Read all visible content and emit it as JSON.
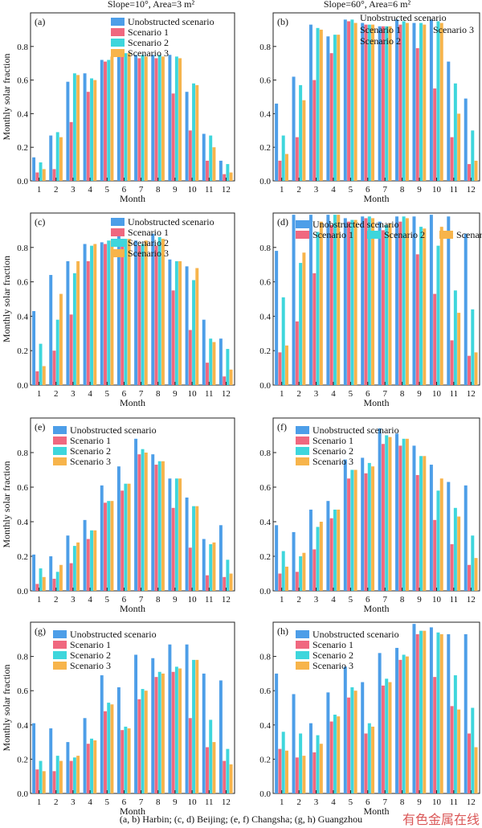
{
  "header": {
    "left_title": "Slope=10°, Area=3 m²",
    "right_title": "Slope=60°, Area=6 m²"
  },
  "caption": "(a, b) Harbin; (c, d) Beijing; (e, f) Changsha; (g, h) Guangzhou",
  "watermark": "有色金属在线",
  "colors": {
    "unobstructed": "#4d9ee8",
    "scenario1": "#f0687f",
    "scenario2": "#3ed6dc",
    "scenario3": "#f7b44b"
  },
  "chart_data": [
    {
      "panel": "(a)",
      "type": "bar",
      "xlabel": "Month",
      "ylabel": "Monthly solar fraction",
      "categories": [
        "1",
        "2",
        "3",
        "4",
        "5",
        "6",
        "7",
        "8",
        "9",
        "10",
        "11",
        "12"
      ],
      "ylim": [
        0,
        1
      ],
      "yticks": [
        "0.0",
        "0.2",
        "0.4",
        "0.6",
        "0.8"
      ],
      "legend": "top-right stacked",
      "series": [
        {
          "name": "Unobstructed scenario",
          "values": [
            0.14,
            0.27,
            0.59,
            0.64,
            0.72,
            0.77,
            0.75,
            0.75,
            0.75,
            0.53,
            0.28,
            0.12
          ]
        },
        {
          "name": "Scenario 1",
          "values": [
            0.05,
            0.07,
            0.35,
            0.53,
            0.71,
            0.74,
            0.73,
            0.73,
            0.52,
            0.3,
            0.12,
            0.04
          ]
        },
        {
          "name": "Scenario 2",
          "values": [
            0.11,
            0.29,
            0.64,
            0.61,
            0.72,
            0.76,
            0.75,
            0.75,
            0.74,
            0.58,
            0.27,
            0.1
          ]
        },
        {
          "name": "Scenario 3",
          "values": [
            0.07,
            0.26,
            0.63,
            0.6,
            0.74,
            0.76,
            0.74,
            0.74,
            0.73,
            0.57,
            0.2,
            0.05
          ]
        }
      ]
    },
    {
      "panel": "(b)",
      "type": "bar",
      "xlabel": "Month",
      "ylabel": "",
      "categories": [
        "1",
        "2",
        "3",
        "4",
        "5",
        "6",
        "7",
        "8",
        "9",
        "10",
        "11",
        "12"
      ],
      "ylim": [
        0,
        1
      ],
      "yticks": [
        "0.0",
        "0.2",
        "0.4",
        "0.6",
        "0.8"
      ],
      "legend": "top scattered labels",
      "series": [
        {
          "name": "Unobstructed scenario",
          "values": [
            0.46,
            0.62,
            0.93,
            0.86,
            0.96,
            0.94,
            0.92,
            0.96,
            0.94,
            0.96,
            0.71,
            0.49
          ]
        },
        {
          "name": "Scenario 1",
          "values": [
            0.12,
            0.26,
            0.6,
            0.76,
            0.95,
            0.93,
            0.92,
            0.93,
            0.79,
            0.55,
            0.26,
            0.1
          ]
        },
        {
          "name": "Scenario 2",
          "values": [
            0.27,
            0.57,
            0.91,
            0.87,
            0.96,
            0.93,
            0.92,
            0.95,
            0.94,
            0.95,
            0.58,
            0.3
          ]
        },
        {
          "name": "Scenario 3",
          "values": [
            0.16,
            0.48,
            0.9,
            0.87,
            0.94,
            0.93,
            0.92,
            0.94,
            0.93,
            0.94,
            0.4,
            0.12
          ]
        }
      ]
    },
    {
      "panel": "(c)",
      "type": "bar",
      "xlabel": "Month",
      "ylabel": "Monthly solar fraction",
      "categories": [
        "1",
        "2",
        "3",
        "4",
        "5",
        "6",
        "7",
        "8",
        "9",
        "10",
        "11",
        "12"
      ],
      "ylim": [
        0,
        1
      ],
      "yticks": [
        "0.0",
        "0.2",
        "0.4",
        "0.6",
        "0.8"
      ],
      "legend": "top-right stacked",
      "series": [
        {
          "name": "Unobstructed scenario",
          "values": [
            0.43,
            0.64,
            0.72,
            0.82,
            0.83,
            0.88,
            0.84,
            0.88,
            0.73,
            0.69,
            0.38,
            0.27
          ]
        },
        {
          "name": "Scenario 1",
          "values": [
            0.08,
            0.2,
            0.41,
            0.72,
            0.82,
            0.84,
            0.81,
            0.81,
            0.55,
            0.32,
            0.13,
            0.05
          ]
        },
        {
          "name": "Scenario 2",
          "values": [
            0.24,
            0.38,
            0.65,
            0.81,
            0.84,
            0.85,
            0.82,
            0.86,
            0.72,
            0.61,
            0.27,
            0.21
          ]
        },
        {
          "name": "Scenario 3",
          "values": [
            0.11,
            0.53,
            0.72,
            0.82,
            0.84,
            0.85,
            0.84,
            0.85,
            0.72,
            0.68,
            0.25,
            0.09
          ]
        }
      ]
    },
    {
      "panel": "(d)",
      "type": "bar",
      "xlabel": "Month",
      "ylabel": "",
      "categories": [
        "1",
        "2",
        "3",
        "4",
        "5",
        "6",
        "7",
        "8",
        "9",
        "10",
        "11",
        "12"
      ],
      "ylim": [
        0,
        1
      ],
      "yticks": [
        "0.0",
        "0.2",
        "0.4",
        "0.6",
        "0.8"
      ],
      "legend": "top row",
      "series": [
        {
          "name": "Unobstructed scenario",
          "values": [
            0.78,
            0.99,
            0.99,
            0.99,
            0.97,
            0.98,
            0.95,
            0.98,
            0.98,
            0.99,
            0.98,
            0.88
          ]
        },
        {
          "name": "Scenario 1",
          "values": [
            0.19,
            0.37,
            0.65,
            0.93,
            0.95,
            0.97,
            0.9,
            0.95,
            0.76,
            0.53,
            0.26,
            0.17
          ]
        },
        {
          "name": "Scenario 2",
          "values": [
            0.51,
            0.71,
            0.89,
            0.99,
            0.96,
            0.98,
            0.93,
            0.98,
            0.92,
            0.81,
            0.55,
            0.44
          ]
        },
        {
          "name": "Scenario 3",
          "values": [
            0.23,
            0.77,
            0.95,
            0.99,
            0.96,
            0.97,
            0.94,
            0.97,
            0.91,
            0.92,
            0.42,
            0.19
          ]
        }
      ]
    },
    {
      "panel": "(e)",
      "type": "bar",
      "xlabel": "Month",
      "ylabel": "Monthly solar fraction",
      "categories": [
        "1",
        "2",
        "3",
        "4",
        "5",
        "6",
        "7",
        "8",
        "9",
        "10",
        "11",
        "12"
      ],
      "ylim": [
        0,
        1
      ],
      "yticks": [
        "0.0",
        "0.2",
        "0.4",
        "0.6",
        "0.8"
      ],
      "legend": "top-left stacked",
      "series": [
        {
          "name": "Unobstructed scenario",
          "values": [
            0.21,
            0.2,
            0.32,
            0.41,
            0.61,
            0.72,
            0.88,
            0.79,
            0.65,
            0.54,
            0.3,
            0.38
          ]
        },
        {
          "name": "Scenario 1",
          "values": [
            0.04,
            0.07,
            0.16,
            0.3,
            0.51,
            0.58,
            0.79,
            0.73,
            0.48,
            0.25,
            0.09,
            0.08
          ]
        },
        {
          "name": "Scenario 2",
          "values": [
            0.13,
            0.11,
            0.26,
            0.35,
            0.52,
            0.62,
            0.82,
            0.75,
            0.65,
            0.49,
            0.27,
            0.18
          ]
        },
        {
          "name": "Scenario 3",
          "values": [
            0.08,
            0.15,
            0.28,
            0.35,
            0.52,
            0.62,
            0.8,
            0.75,
            0.65,
            0.49,
            0.28,
            0.1
          ]
        }
      ]
    },
    {
      "panel": "(f)",
      "type": "bar",
      "xlabel": "Month",
      "ylabel": "",
      "categories": [
        "1",
        "2",
        "3",
        "4",
        "5",
        "6",
        "7",
        "8",
        "9",
        "10",
        "11",
        "12"
      ],
      "ylim": [
        0,
        1
      ],
      "yticks": [
        "0.0",
        "0.2",
        "0.4",
        "0.6",
        "0.8"
      ],
      "legend": "top-left stacked",
      "series": [
        {
          "name": "Unobstructed scenario",
          "values": [
            0.38,
            0.34,
            0.47,
            0.52,
            0.76,
            0.77,
            0.94,
            0.91,
            0.84,
            0.73,
            0.63,
            0.61
          ]
        },
        {
          "name": "Scenario 1",
          "values": [
            0.1,
            0.11,
            0.24,
            0.42,
            0.65,
            0.68,
            0.85,
            0.84,
            0.67,
            0.41,
            0.27,
            0.15
          ]
        },
        {
          "name": "Scenario 2",
          "values": [
            0.23,
            0.2,
            0.37,
            0.47,
            0.7,
            0.74,
            0.9,
            0.88,
            0.78,
            0.58,
            0.48,
            0.32
          ]
        },
        {
          "name": "Scenario 3",
          "values": [
            0.14,
            0.22,
            0.4,
            0.47,
            0.7,
            0.72,
            0.89,
            0.88,
            0.78,
            0.65,
            0.43,
            0.19
          ]
        }
      ]
    },
    {
      "panel": "(g)",
      "type": "bar",
      "xlabel": "Month",
      "ylabel": "Monthly solar fraction",
      "categories": [
        "1",
        "2",
        "3",
        "4",
        "5",
        "6",
        "7",
        "8",
        "9",
        "10",
        "11",
        "12"
      ],
      "ylim": [
        0,
        1
      ],
      "yticks": [
        "0.0",
        "0.2",
        "0.4",
        "0.6",
        "0.8"
      ],
      "legend": "top-left stacked",
      "series": [
        {
          "name": "Unobstructed scenario",
          "values": [
            0.41,
            0.38,
            0.3,
            0.44,
            0.69,
            0.62,
            0.81,
            0.79,
            0.87,
            0.87,
            0.7,
            0.66
          ]
        },
        {
          "name": "Scenario 1",
          "values": [
            0.14,
            0.13,
            0.19,
            0.29,
            0.48,
            0.37,
            0.55,
            0.68,
            0.71,
            0.44,
            0.27,
            0.19
          ]
        },
        {
          "name": "Scenario 2",
          "values": [
            0.19,
            0.22,
            0.21,
            0.32,
            0.53,
            0.39,
            0.61,
            0.71,
            0.74,
            0.78,
            0.43,
            0.26
          ]
        },
        {
          "name": "Scenario 3",
          "values": [
            0.13,
            0.19,
            0.22,
            0.31,
            0.52,
            0.38,
            0.6,
            0.7,
            0.73,
            0.78,
            0.3,
            0.17
          ]
        }
      ]
    },
    {
      "panel": "(h)",
      "type": "bar",
      "xlabel": "Month",
      "ylabel": "",
      "categories": [
        "1",
        "2",
        "3",
        "4",
        "5",
        "6",
        "7",
        "8",
        "9",
        "10",
        "11",
        "12"
      ],
      "ylim": [
        0,
        1
      ],
      "yticks": [
        "0.0",
        "0.2",
        "0.4",
        "0.6",
        "0.8"
      ],
      "legend": "top-left stacked",
      "series": [
        {
          "name": "Unobstructed scenario",
          "values": [
            0.7,
            0.58,
            0.41,
            0.59,
            0.74,
            0.65,
            0.82,
            0.85,
            0.99,
            0.97,
            0.93,
            0.93
          ]
        },
        {
          "name": "Scenario 1",
          "values": [
            0.26,
            0.21,
            0.24,
            0.42,
            0.56,
            0.35,
            0.63,
            0.78,
            0.93,
            0.68,
            0.51,
            0.35
          ]
        },
        {
          "name": "Scenario 2",
          "values": [
            0.36,
            0.35,
            0.34,
            0.46,
            0.62,
            0.41,
            0.67,
            0.81,
            0.95,
            0.94,
            0.69,
            0.5
          ]
        },
        {
          "name": "Scenario 3",
          "values": [
            0.25,
            0.22,
            0.29,
            0.45,
            0.6,
            0.39,
            0.65,
            0.8,
            0.95,
            0.93,
            0.49,
            0.27
          ]
        }
      ]
    }
  ]
}
